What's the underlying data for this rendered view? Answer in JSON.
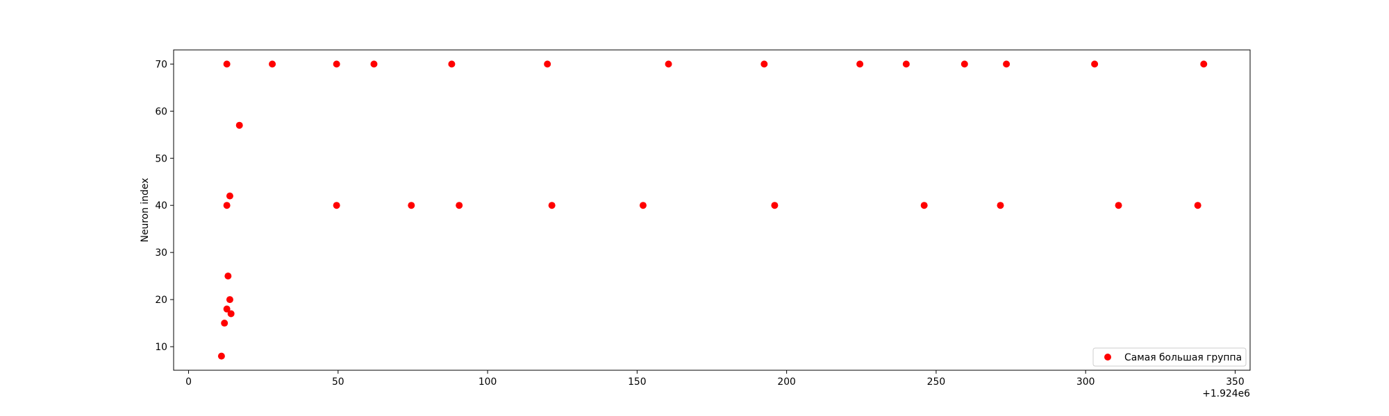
{
  "chart_data": {
    "type": "scatter",
    "title": "",
    "xlabel": "",
    "ylabel": "Neuron index",
    "x_offset_label": "+1.924e6",
    "xlim": [
      -5,
      355
    ],
    "ylim": [
      5,
      73
    ],
    "xticks": [
      0,
      50,
      100,
      150,
      200,
      250,
      300,
      350
    ],
    "yticks": [
      10,
      20,
      30,
      40,
      50,
      60,
      70
    ],
    "grid": false,
    "legend_position": "lower-right",
    "series": [
      {
        "name": "Самая большая группа",
        "color": "#ff0000",
        "marker": "circle",
        "points": [
          {
            "x": 11,
            "y": 8
          },
          {
            "x": 12,
            "y": 15
          },
          {
            "x": 12.8,
            "y": 18
          },
          {
            "x": 13.2,
            "y": 25
          },
          {
            "x": 13.8,
            "y": 20
          },
          {
            "x": 14.2,
            "y": 17
          },
          {
            "x": 12.8,
            "y": 40
          },
          {
            "x": 13.8,
            "y": 42
          },
          {
            "x": 17,
            "y": 57
          },
          {
            "x": 12.8,
            "y": 70
          },
          {
            "x": 28,
            "y": 70
          },
          {
            "x": 49.5,
            "y": 70
          },
          {
            "x": 62,
            "y": 70
          },
          {
            "x": 88,
            "y": 70
          },
          {
            "x": 120,
            "y": 70
          },
          {
            "x": 160.5,
            "y": 70
          },
          {
            "x": 192.5,
            "y": 70
          },
          {
            "x": 224.5,
            "y": 70
          },
          {
            "x": 240,
            "y": 70
          },
          {
            "x": 259.5,
            "y": 70
          },
          {
            "x": 273.5,
            "y": 70
          },
          {
            "x": 303,
            "y": 70
          },
          {
            "x": 339.5,
            "y": 70
          },
          {
            "x": 49.5,
            "y": 40
          },
          {
            "x": 74.5,
            "y": 40
          },
          {
            "x": 90.5,
            "y": 40
          },
          {
            "x": 121.5,
            "y": 40
          },
          {
            "x": 152,
            "y": 40
          },
          {
            "x": 196,
            "y": 40
          },
          {
            "x": 246,
            "y": 40
          },
          {
            "x": 271.5,
            "y": 40
          },
          {
            "x": 311,
            "y": 40
          },
          {
            "x": 337.5,
            "y": 40
          }
        ]
      }
    ]
  }
}
